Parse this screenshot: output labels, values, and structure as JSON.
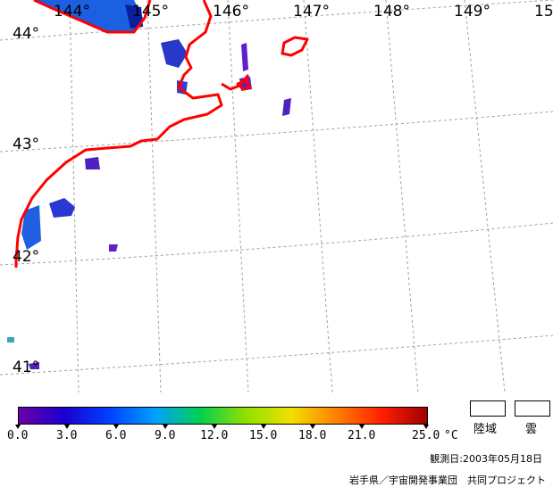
{
  "map": {
    "longitude_labels": [
      "144°",
      "145°",
      "146°",
      "147°",
      "148°",
      "149°",
      "15"
    ],
    "latitude_labels": [
      "44°",
      "43°",
      "42°",
      "41°"
    ]
  },
  "colorbar": {
    "ticks": [
      "0.0",
      "3.0",
      "6.0",
      "9.0",
      "12.0",
      "15.0",
      "18.0",
      "21.0",
      "25.0"
    ],
    "unit": "°C",
    "colors": [
      "#6a00a8",
      "#1a00d0",
      "#0040ff",
      "#00a0ff",
      "#00d050",
      "#90e000",
      "#f0e000",
      "#ff8000",
      "#ff2000",
      "#a00000"
    ]
  },
  "legend": {
    "land_label": "陸域",
    "cloud_label": "雲"
  },
  "footer": {
    "observation_date": "観測日:2003年05月18日",
    "credit": "岩手県／宇宙開発事業団　共同プロジェクト"
  },
  "colors": {
    "coastline": "#ff0000",
    "grid": "#a0a0a0",
    "water_blue": "#2040e0",
    "water_purple": "#5020c0"
  }
}
